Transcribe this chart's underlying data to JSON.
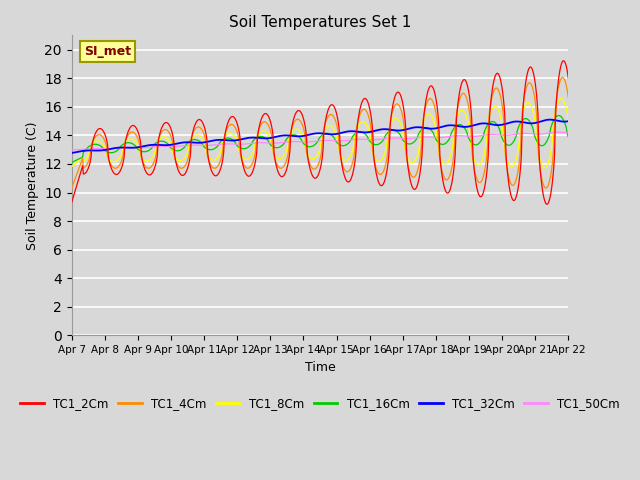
{
  "title": "Soil Temperatures Set 1",
  "xlabel": "Time",
  "ylabel": "Soil Temperature (C)",
  "ylim": [
    0,
    21
  ],
  "yticks": [
    0,
    2,
    4,
    6,
    8,
    10,
    12,
    14,
    16,
    18,
    20
  ],
  "series_colors": [
    "#ff0000",
    "#ff8c00",
    "#ffff00",
    "#00cc00",
    "#0000ff",
    "#ff88ff"
  ],
  "series_labels": [
    "TC1_2Cm",
    "TC1_4Cm",
    "TC1_8Cm",
    "TC1_16Cm",
    "TC1_32Cm",
    "TC1_50Cm"
  ],
  "annotation_text": "SI_met",
  "background_color": "#d8d8d8",
  "plot_bg_color": "#d8d8d8",
  "grid_color": "#ffffff",
  "x_tick_labels": [
    "Apr 7",
    "Apr 8",
    "Apr 9",
    "Apr 10",
    "Apr 11",
    "Apr 12",
    "Apr 13",
    "Apr 14",
    "Apr 15",
    "Apr 16",
    "Apr 17",
    "Apr 18",
    "Apr 19",
    "Apr 20",
    "Apr 21",
    "Apr 22"
  ]
}
